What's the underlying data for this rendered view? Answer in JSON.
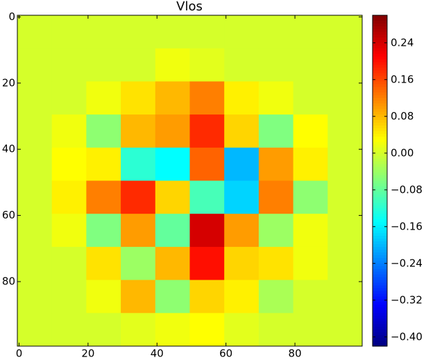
{
  "chart_data": {
    "type": "heatmap",
    "title": "Vlos",
    "xlim": [
      -0.5,
      99.5
    ],
    "ylim": [
      -0.5,
      99.5
    ],
    "xticks": [
      0,
      20,
      40,
      60,
      80
    ],
    "yticks": [
      0,
      20,
      40,
      60,
      80
    ],
    "colormap": "jet",
    "clim": [
      -0.42,
      0.3
    ],
    "cticks": [
      {
        "value": 0.24,
        "label": "0.24"
      },
      {
        "value": 0.16,
        "label": "0.16"
      },
      {
        "value": 0.08,
        "label": "0.08"
      },
      {
        "value": 0,
        "label": "0.00"
      },
      {
        "value": -0.08,
        "label": "−0.08"
      },
      {
        "value": -0.16,
        "label": "−0.16"
      },
      {
        "value": -0.24,
        "label": "−0.24"
      },
      {
        "value": -0.32,
        "label": "−0.32"
      },
      {
        "value": -0.4,
        "label": "−0.40"
      }
    ],
    "z": [
      [
        0,
        0,
        0,
        0,
        0,
        0,
        0,
        0,
        0,
        0
      ],
      [
        0,
        0,
        0,
        0,
        0.02,
        0.01,
        0,
        0,
        0,
        0
      ],
      [
        0,
        0,
        0.02,
        0.05,
        0.08,
        0.12,
        0.04,
        0.02,
        0,
        0
      ],
      [
        0,
        0.02,
        -0.05,
        0.08,
        0.1,
        0.18,
        0.06,
        -0.06,
        0.03,
        0
      ],
      [
        0,
        0.03,
        0.04,
        -0.12,
        -0.15,
        0.14,
        -0.2,
        0.1,
        0.04,
        0
      ],
      [
        0,
        0.04,
        0.12,
        0.18,
        0.06,
        -0.1,
        -0.18,
        0.12,
        -0.05,
        0
      ],
      [
        0,
        0.02,
        -0.06,
        0.1,
        -0.08,
        0.24,
        0.1,
        -0.04,
        0.02,
        0
      ],
      [
        0,
        0,
        0.05,
        -0.04,
        0.08,
        0.2,
        0.06,
        0.05,
        0.02,
        0
      ],
      [
        0,
        0,
        0.02,
        0.08,
        -0.05,
        0.06,
        0.04,
        -0.03,
        0,
        0
      ],
      [
        0,
        0,
        0,
        0.01,
        0.02,
        0.03,
        0.01,
        0,
        0,
        0
      ]
    ]
  }
}
